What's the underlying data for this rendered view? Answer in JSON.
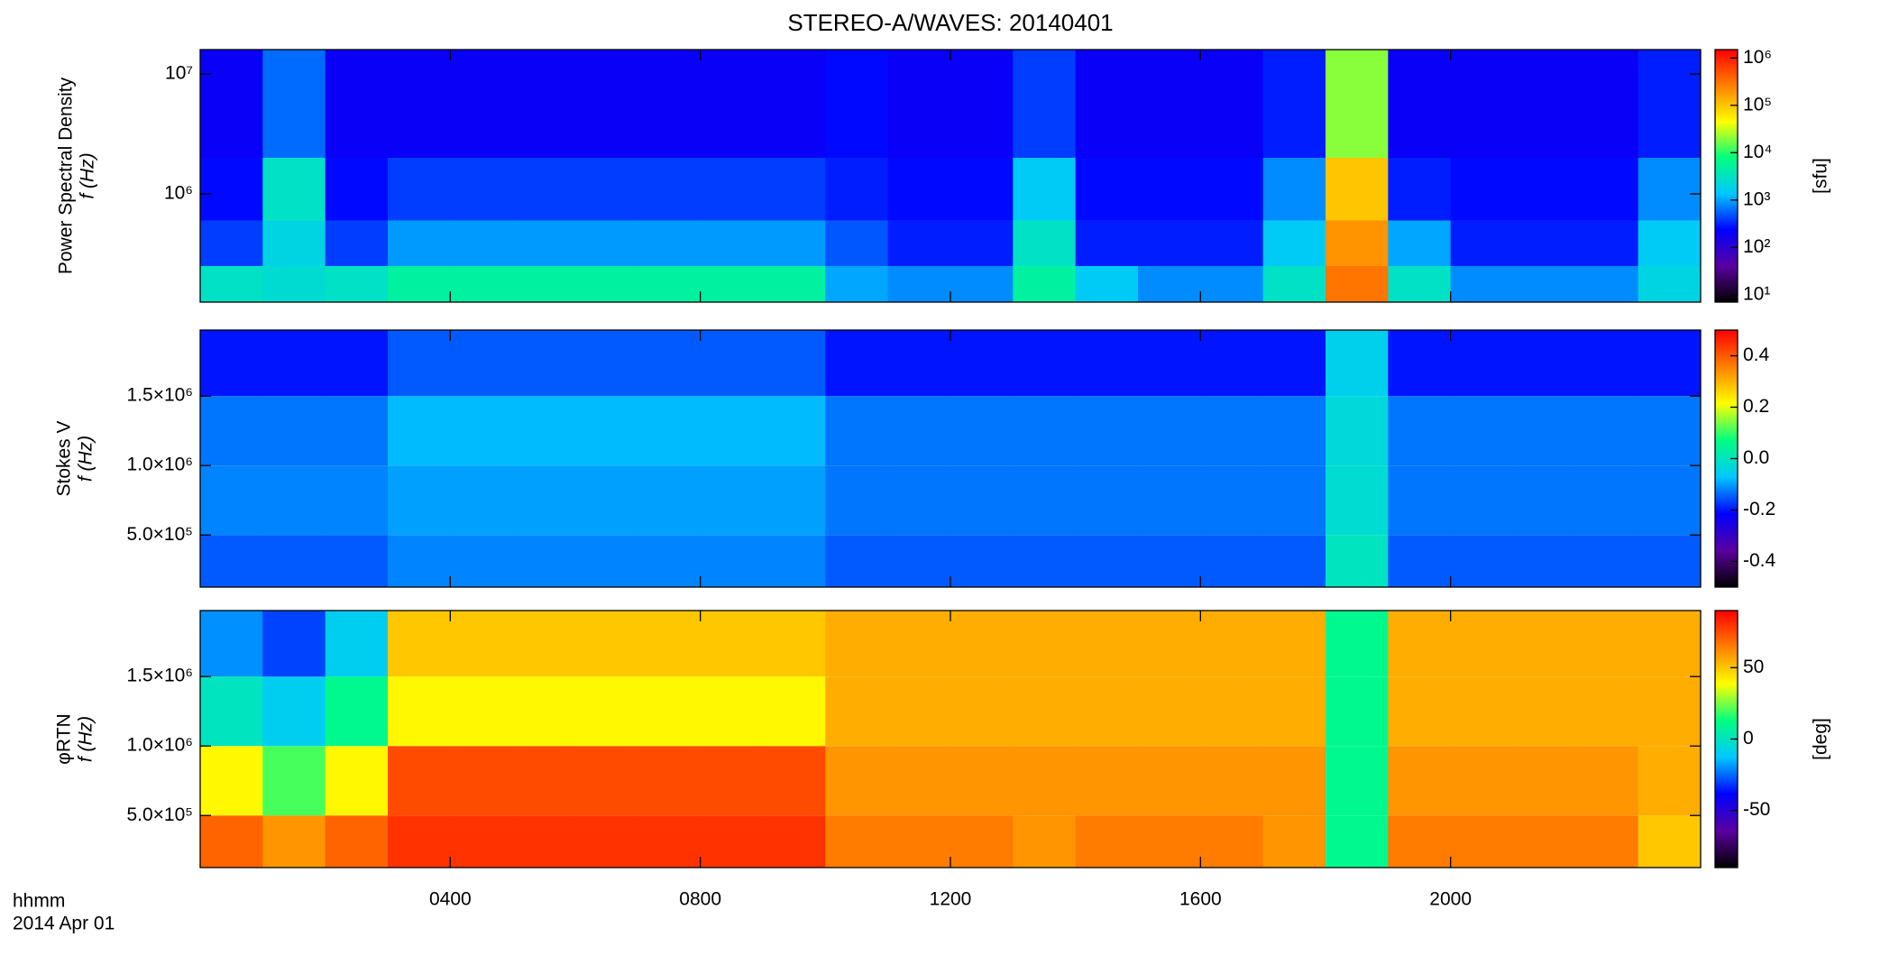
{
  "title": "STEREO-A/WAVES: 20140401",
  "x_label_lines": [
    "hhmm",
    "2014 Apr 01"
  ],
  "colormap": [
    "#000000",
    "#5a00a0",
    "#0000ff",
    "#00c8ff",
    "#00ff80",
    "#ffff00",
    "#ff8000",
    "#ff0000"
  ],
  "chart_data": [
    {
      "type": "heatmap",
      "ylabel": [
        "Power Spectral Density",
        "f (Hz)"
      ],
      "clabel": "[sfu]",
      "xbins": [
        0,
        1,
        2,
        3,
        4,
        5,
        6,
        7,
        8,
        9,
        10,
        11,
        12,
        13,
        14,
        15,
        16,
        17,
        18,
        19,
        20,
        21,
        22,
        23,
        24
      ],
      "ybins": [
        125000,
        250000,
        600000,
        2000000,
        16000000
      ],
      "values": [
        [
          3000,
          2500,
          3000,
          5000,
          5000,
          5000,
          5000,
          5000,
          5000,
          5000,
          1000,
          800,
          800,
          5000,
          1500,
          800,
          800,
          3000,
          300000,
          3000,
          800,
          800,
          800,
          2000
        ],
        [
          400,
          2000,
          400,
          900,
          900,
          900,
          900,
          900,
          900,
          900,
          500,
          300,
          300,
          3000,
          300,
          300,
          300,
          1500,
          200000,
          1000,
          300,
          300,
          300,
          1500
        ],
        [
          250,
          3000,
          250,
          400,
          400,
          400,
          400,
          400,
          400,
          400,
          300,
          250,
          250,
          1500,
          250,
          250,
          250,
          800,
          100000,
          300,
          250,
          250,
          250,
          800
        ],
        [
          200,
          600,
          200,
          200,
          200,
          200,
          200,
          200,
          200,
          200,
          250,
          200,
          200,
          400,
          200,
          200,
          200,
          300,
          20000,
          200,
          200,
          200,
          200,
          300
        ]
      ],
      "xlim": [
        0,
        24
      ],
      "ylim": [
        125000,
        16000000
      ],
      "ylog": true,
      "yticks": [
        {
          "value": 1000000,
          "label": "10⁶"
        },
        {
          "value": 10000000,
          "label": "10⁷"
        }
      ],
      "clim": [
        7,
        1500000
      ],
      "clog": true,
      "cticks": [
        {
          "value": 10,
          "label": "10¹"
        },
        {
          "value": 100,
          "label": "10²"
        },
        {
          "value": 1000,
          "label": "10³"
        },
        {
          "value": 10000,
          "label": "10⁴"
        },
        {
          "value": 100000,
          "label": "10⁵"
        },
        {
          "value": 1000000,
          "label": "10⁶"
        }
      ]
    },
    {
      "type": "heatmap",
      "ylabel": [
        "Stokes V",
        "f (Hz)"
      ],
      "xbins": [
        0,
        1,
        2,
        3,
        4,
        5,
        6,
        7,
        8,
        9,
        10,
        11,
        12,
        13,
        14,
        15,
        16,
        17,
        18,
        19,
        20,
        21,
        22,
        23,
        24
      ],
      "ybins": [
        125000,
        500000,
        1000000,
        1500000,
        1975000
      ],
      "values": [
        [
          -0.15,
          -0.15,
          -0.15,
          -0.12,
          -0.12,
          -0.12,
          -0.12,
          -0.12,
          -0.12,
          -0.12,
          -0.15,
          -0.15,
          -0.15,
          -0.15,
          -0.15,
          -0.15,
          -0.15,
          -0.15,
          0.0,
          -0.15,
          -0.15,
          -0.15,
          -0.15,
          -0.15
        ],
        [
          -0.12,
          -0.12,
          -0.12,
          -0.1,
          -0.1,
          -0.1,
          -0.1,
          -0.1,
          -0.1,
          -0.1,
          -0.13,
          -0.13,
          -0.13,
          -0.13,
          -0.13,
          -0.13,
          -0.13,
          -0.13,
          -0.02,
          -0.13,
          -0.13,
          -0.13,
          -0.13,
          -0.13
        ],
        [
          -0.13,
          -0.13,
          -0.13,
          -0.08,
          -0.08,
          -0.08,
          -0.08,
          -0.08,
          -0.08,
          -0.08,
          -0.13,
          -0.13,
          -0.13,
          -0.13,
          -0.13,
          -0.13,
          -0.13,
          -0.13,
          -0.03,
          -0.13,
          -0.13,
          -0.13,
          -0.13,
          -0.13
        ],
        [
          -0.2,
          -0.2,
          -0.2,
          -0.15,
          -0.15,
          -0.15,
          -0.15,
          -0.15,
          -0.15,
          -0.15,
          -0.2,
          -0.2,
          -0.2,
          -0.2,
          -0.2,
          -0.2,
          -0.2,
          -0.2,
          -0.05,
          -0.2,
          -0.2,
          -0.2,
          -0.2,
          -0.2
        ]
      ],
      "xlim": [
        0,
        24
      ],
      "ylim": [
        125000,
        1975000
      ],
      "yticks": [
        {
          "value": 500000,
          "label": "5.0×10⁵"
        },
        {
          "value": 1000000,
          "label": "1.0×10⁶"
        },
        {
          "value": 1500000,
          "label": "1.5×10⁶"
        }
      ],
      "clim": [
        -0.5,
        0.5
      ],
      "cticks": [
        -0.4,
        -0.2,
        {
          "value": 0,
          "label": "0.0"
        },
        0.2,
        0.4
      ]
    },
    {
      "type": "heatmap",
      "ylabel": [
        "φRTN",
        "f (Hz)"
      ],
      "clabel": "[deg]",
      "xbins": [
        0,
        1,
        2,
        3,
        4,
        5,
        6,
        7,
        8,
        9,
        10,
        11,
        12,
        13,
        14,
        15,
        16,
        17,
        18,
        19,
        20,
        21,
        22,
        23,
        24
      ],
      "ybins": [
        125000,
        500000,
        1000000,
        1500000,
        1975000
      ],
      "values": [
        [
          70,
          60,
          70,
          80,
          80,
          80,
          80,
          80,
          80,
          80,
          65,
          65,
          65,
          60,
          65,
          65,
          65,
          60,
          10,
          65,
          65,
          65,
          65,
          50
        ],
        [
          40,
          20,
          40,
          75,
          75,
          75,
          75,
          75,
          75,
          75,
          60,
          60,
          60,
          60,
          60,
          60,
          60,
          60,
          10,
          60,
          60,
          60,
          60,
          55
        ],
        [
          0,
          -10,
          10,
          40,
          40,
          40,
          40,
          40,
          40,
          40,
          55,
          55,
          55,
          55,
          55,
          55,
          55,
          55,
          10,
          55,
          55,
          55,
          55,
          55
        ],
        [
          -20,
          -30,
          -10,
          50,
          50,
          50,
          50,
          50,
          50,
          50,
          55,
          55,
          55,
          55,
          55,
          55,
          55,
          55,
          10,
          55,
          55,
          55,
          55,
          55
        ]
      ],
      "xlim": [
        0,
        24
      ],
      "ylim": [
        125000,
        1975000
      ],
      "yticks": [
        {
          "value": 500000,
          "label": "5.0×10⁵"
        },
        {
          "value": 1000000,
          "label": "1.0×10⁶"
        },
        {
          "value": 1500000,
          "label": "1.5×10⁶"
        }
      ],
      "clim": [
        -90,
        90
      ],
      "cticks": [
        -50,
        0,
        50
      ],
      "xticks": [
        {
          "value": 4,
          "label": "0400"
        },
        {
          "value": 8,
          "label": "0800"
        },
        {
          "value": 12,
          "label": "1200"
        },
        {
          "value": 16,
          "label": "1600"
        },
        {
          "value": 20,
          "label": "2000"
        }
      ]
    }
  ]
}
